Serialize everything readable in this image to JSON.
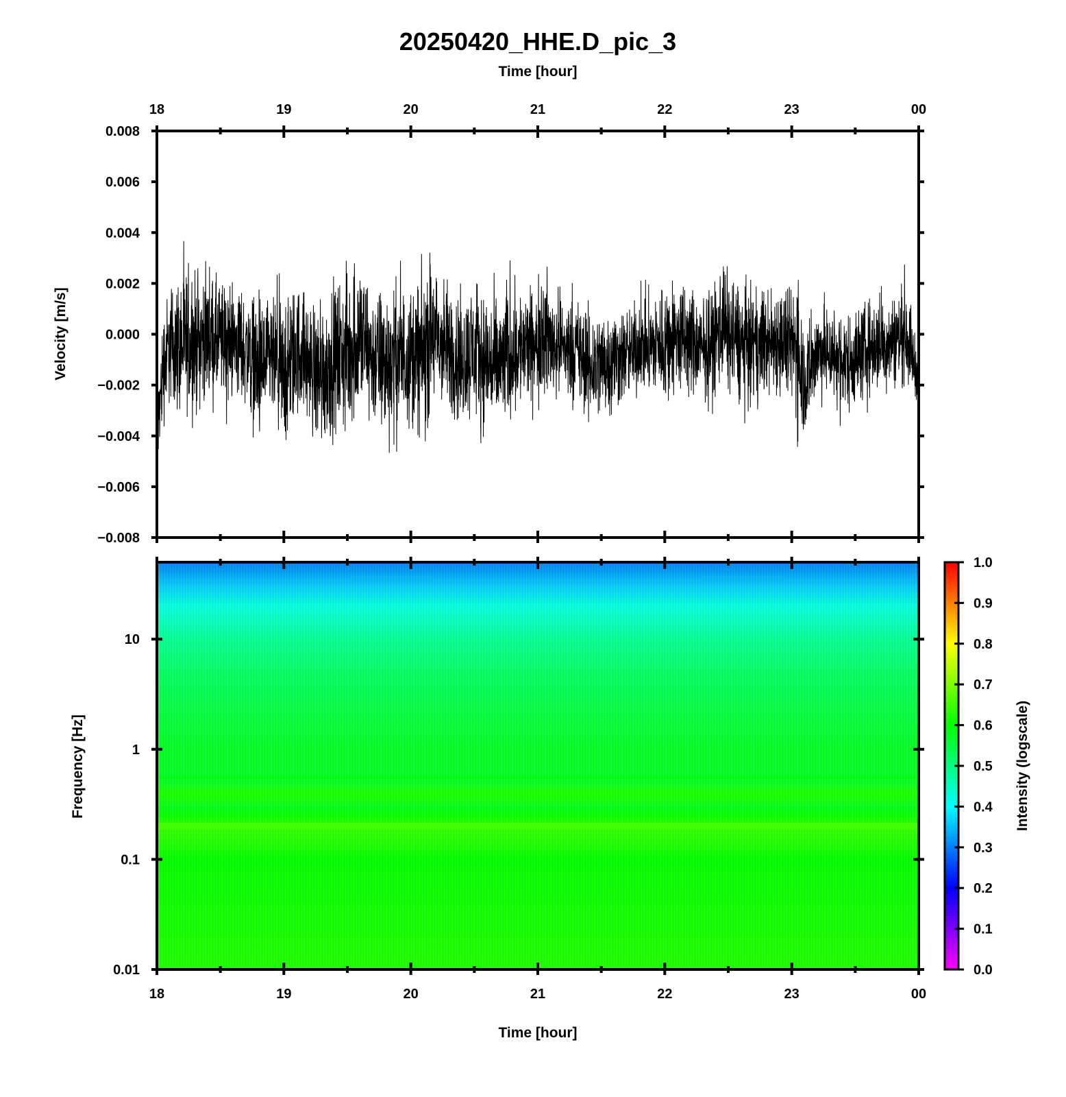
{
  "figure": {
    "title": "20250420_HHE.D_pic_3"
  },
  "chart_data": [
    {
      "type": "line",
      "panel": "waveform",
      "top_xlabel": "Time [hour]",
      "x_ticks": [
        "18",
        "19",
        "20",
        "21",
        "22",
        "23",
        "00"
      ],
      "xlim": [
        0,
        6
      ],
      "ylabel": "Velocity [m/s]",
      "ylim": [
        -0.008,
        0.008
      ],
      "y_ticks": [
        "0.008",
        "0.006",
        "0.004",
        "0.002",
        "0.000",
        "−0.002",
        "−0.004",
        "−0.006",
        "−0.008"
      ],
      "y_tick_values": [
        0.008,
        0.006,
        0.004,
        0.002,
        0.0,
        -0.002,
        -0.004,
        -0.006,
        -0.008
      ],
      "line_color": "#000000",
      "envelope": {
        "x_hours": [
          0.0,
          0.05,
          0.1,
          0.2,
          0.3,
          0.4,
          0.5,
          0.6,
          0.7,
          0.8,
          0.9,
          1.0,
          1.1,
          1.15,
          1.2,
          1.3,
          1.4,
          1.5,
          1.6,
          1.7,
          1.8,
          1.9,
          2.0,
          2.1,
          2.17,
          2.2,
          2.3,
          2.4,
          2.5,
          2.6,
          2.7,
          2.8,
          2.9,
          3.0,
          3.02,
          3.1,
          3.2,
          3.3,
          3.4,
          3.5,
          3.6,
          3.7,
          3.8,
          3.9,
          4.0,
          4.1,
          4.2,
          4.3,
          4.4,
          4.45,
          4.5,
          4.6,
          4.7,
          4.8,
          4.9,
          5.0,
          5.05,
          5.1,
          5.2,
          5.3,
          5.4,
          5.5,
          5.6,
          5.7,
          5.8,
          5.9,
          6.0
        ],
        "max": [
          -0.002,
          0.002,
          0.0028,
          0.0037,
          0.0034,
          0.0033,
          0.0031,
          0.0028,
          0.0026,
          0.0025,
          0.0022,
          0.0025,
          0.0031,
          0.0028,
          0.0023,
          0.0025,
          0.0031,
          0.0037,
          0.0043,
          0.0028,
          0.0032,
          0.0031,
          0.003,
          0.0036,
          0.0046,
          0.0034,
          0.003,
          0.0025,
          0.003,
          0.0028,
          0.0025,
          0.003,
          0.0027,
          0.0026,
          0.0043,
          0.0027,
          0.0024,
          0.0022,
          0.0019,
          0.002,
          0.0019,
          0.0017,
          0.0021,
          0.0022,
          0.0031,
          0.003,
          0.0028,
          0.002,
          0.003,
          0.0044,
          0.0033,
          0.003,
          0.0026,
          0.0026,
          0.003,
          0.0025,
          0.0043,
          0.0012,
          0.0019,
          0.002,
          0.0017,
          0.0018,
          0.0021,
          0.0023,
          0.0023,
          0.0028,
          -0.0005
        ],
        "min": [
          -0.0063,
          -0.0045,
          -0.0037,
          -0.0045,
          -0.004,
          -0.0035,
          -0.0038,
          -0.0034,
          -0.0037,
          -0.0055,
          -0.0042,
          -0.006,
          -0.0045,
          -0.004,
          -0.0048,
          -0.0057,
          -0.005,
          -0.0052,
          -0.0044,
          -0.0046,
          -0.0055,
          -0.005,
          -0.0045,
          -0.0054,
          -0.0043,
          -0.004,
          -0.0043,
          -0.0046,
          -0.0043,
          -0.0049,
          -0.0052,
          -0.0042,
          -0.0038,
          -0.0036,
          -0.0035,
          -0.0034,
          -0.0033,
          -0.0034,
          -0.0045,
          -0.0043,
          -0.0038,
          -0.0034,
          -0.003,
          -0.0032,
          -0.0037,
          -0.0033,
          -0.0035,
          -0.0033,
          -0.0036,
          -0.003,
          -0.0032,
          -0.0037,
          -0.0036,
          -0.0033,
          -0.0033,
          -0.0035,
          -0.0053,
          -0.005,
          -0.0032,
          -0.0034,
          -0.004,
          -0.0036,
          -0.0032,
          -0.003,
          -0.0028,
          -0.0027,
          -0.003
        ]
      }
    },
    {
      "type": "heatmap",
      "panel": "spectrogram",
      "xlabel": "Time [hour]",
      "x_ticks": [
        "18",
        "19",
        "20",
        "21",
        "22",
        "23",
        "00"
      ],
      "xlim": [
        0,
        6
      ],
      "ylabel": "Frequency [Hz]",
      "y_scale": "log",
      "ylim": [
        0.01,
        50
      ],
      "y_ticks": [
        "10",
        "1",
        "0.1",
        "0.01"
      ],
      "y_tick_values": [
        10,
        1,
        0.1,
        0.01
      ],
      "intensity_profile": {
        "frequency_hz": [
          0.01,
          0.03,
          0.1,
          0.2,
          0.25,
          0.3,
          0.4,
          0.5,
          1,
          2,
          5,
          10,
          20,
          30,
          50
        ],
        "intensity": [
          0.62,
          0.61,
          0.6,
          0.64,
          0.6,
          0.58,
          0.62,
          0.57,
          0.57,
          0.55,
          0.52,
          0.48,
          0.42,
          0.36,
          0.3
        ]
      },
      "colorbar": {
        "label": "Intensity (logscale)",
        "range": [
          0.0,
          1.0
        ],
        "ticks": [
          "1.0",
          "0.9",
          "0.8",
          "0.7",
          "0.6",
          "0.5",
          "0.4",
          "0.3",
          "0.2",
          "0.1",
          "0.0"
        ],
        "tick_values": [
          1.0,
          0.9,
          0.8,
          0.7,
          0.6,
          0.5,
          0.4,
          0.3,
          0.2,
          0.1,
          0.0
        ],
        "colormap": "rainbow",
        "color_stops": [
          "#ff00ff",
          "#0000ff",
          "#00ffff",
          "#00ff00",
          "#ffff00",
          "#ff0000"
        ]
      }
    }
  ]
}
